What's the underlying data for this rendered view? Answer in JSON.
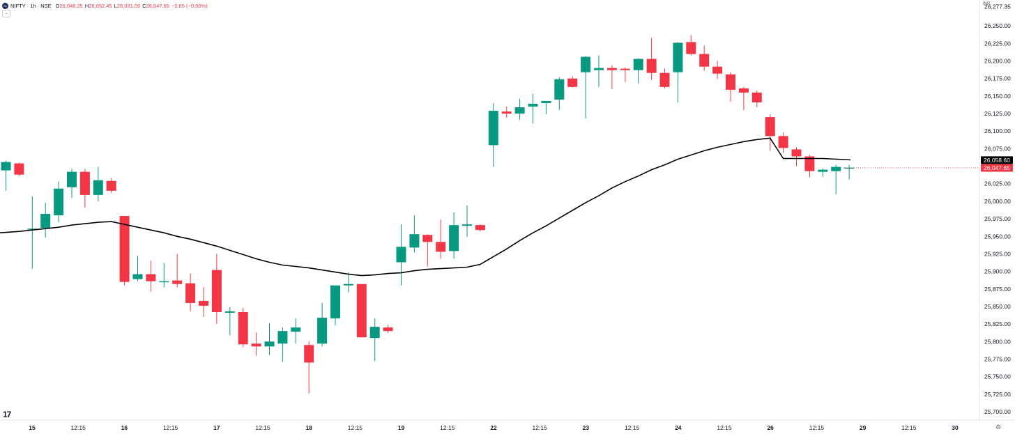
{
  "header": {
    "symbol": "NIFTY · 1h · NSE",
    "o_label": "O",
    "o_value": "26,048.25",
    "h_label": "H",
    "h_value": "26,052.45",
    "l_label": "L",
    "l_value": "26,031.05",
    "c_label": "C",
    "c_value": "26,047.65",
    "change": "−0.65 (−0.00%)"
  },
  "currency": "INR",
  "colors": {
    "up": "#089981",
    "down": "#f23645",
    "ma": "#000000",
    "grid": "#ffffff"
  },
  "icons": {
    "logo": "nifty-logo-icon",
    "collapse": "chevron-down-icon",
    "brand": "tradingview-logo-icon",
    "settings": "gear-icon"
  },
  "chart_data": {
    "type": "candlestick",
    "ylim": [
      25688,
      26287
    ],
    "y_ticks": [
      "26,277.35",
      "26,250.00",
      "26,225.00",
      "26,200.00",
      "26,175.00",
      "26,150.00",
      "26,125.00",
      "26,100.00",
      "26,075.00",
      "26,050.00",
      "26,025.00",
      "26,000.00",
      "25,975.00",
      "25,950.00",
      "25,925.00",
      "25,900.00",
      "25,875.00",
      "25,850.00",
      "25,825.00",
      "25,800.00",
      "25,775.00",
      "25,750.00",
      "25,725.00",
      "25,700.00"
    ],
    "x_ticks": [
      "15",
      "12:15",
      "16",
      "12:15",
      "17",
      "12:15",
      "18",
      "12:15",
      "19",
      "12:15",
      "22",
      "12:15",
      "23",
      "12:15",
      "24",
      "12:15",
      "26",
      "12:15",
      "29",
      "12:15",
      "30"
    ],
    "x_ticks_bold": [
      "15",
      "16",
      "17",
      "18",
      "19",
      "22",
      "23",
      "24",
      "26",
      "29",
      "30"
    ],
    "price_labels": {
      "ma_last": "26,058.60",
      "close_last": "26,047.65"
    },
    "candles": [
      {
        "o": 26044,
        "h": 26058,
        "l": 26015,
        "c": 26056
      },
      {
        "o": 26054,
        "h": 26055,
        "l": 26036,
        "c": 26038
      },
      {
        "o": 25960,
        "h": 26007,
        "l": 25904,
        "c": 25961
      },
      {
        "o": 25962,
        "h": 25998,
        "l": 25948,
        "c": 25982
      },
      {
        "o": 25980,
        "h": 26028,
        "l": 25970,
        "c": 26018
      },
      {
        "o": 26020,
        "h": 26046,
        "l": 26005,
        "c": 26042
      },
      {
        "o": 26042,
        "h": 26046,
        "l": 25991,
        "c": 26009
      },
      {
        "o": 26009,
        "h": 26049,
        "l": 26000,
        "c": 26030
      },
      {
        "o": 26029,
        "h": 26033,
        "l": 26012,
        "c": 26015
      },
      {
        "o": 25979,
        "h": 25979,
        "l": 25880,
        "c": 25885
      },
      {
        "o": 25889,
        "h": 25922,
        "l": 25886,
        "c": 25896
      },
      {
        "o": 25896,
        "h": 25915,
        "l": 25871,
        "c": 25886
      },
      {
        "o": 25886,
        "h": 25912,
        "l": 25877,
        "c": 25886
      },
      {
        "o": 25887,
        "h": 25925,
        "l": 25877,
        "c": 25882
      },
      {
        "o": 25883,
        "h": 25897,
        "l": 25843,
        "c": 25855
      },
      {
        "o": 25858,
        "h": 25878,
        "l": 25835,
        "c": 25851
      },
      {
        "o": 25902,
        "h": 25925,
        "l": 25825,
        "c": 25842
      },
      {
        "o": 25841,
        "h": 25849,
        "l": 25809,
        "c": 25843
      },
      {
        "o": 25842,
        "h": 25848,
        "l": 25792,
        "c": 25796
      },
      {
        "o": 25797,
        "h": 25813,
        "l": 25780,
        "c": 25793
      },
      {
        "o": 25793,
        "h": 25826,
        "l": 25781,
        "c": 25800
      },
      {
        "o": 25797,
        "h": 25820,
        "l": 25771,
        "c": 25815
      },
      {
        "o": 25814,
        "h": 25833,
        "l": 25797,
        "c": 25820
      },
      {
        "o": 25795,
        "h": 25800,
        "l": 25726,
        "c": 25770
      },
      {
        "o": 25797,
        "h": 25855,
        "l": 25793,
        "c": 25834
      },
      {
        "o": 25833,
        "h": 25880,
        "l": 25823,
        "c": 25880
      },
      {
        "o": 25880,
        "h": 25899,
        "l": 25870,
        "c": 25882
      },
      {
        "o": 25882,
        "h": 25882,
        "l": 25806,
        "c": 25806
      },
      {
        "o": 25805,
        "h": 25833,
        "l": 25772,
        "c": 25821
      },
      {
        "o": 25820,
        "h": 25824,
        "l": 25812,
        "c": 25815
      },
      {
        "o": 25913,
        "h": 25967,
        "l": 25880,
        "c": 25935
      },
      {
        "o": 25934,
        "h": 25980,
        "l": 25927,
        "c": 25953
      },
      {
        "o": 25952,
        "h": 25953,
        "l": 25907,
        "c": 25942
      },
      {
        "o": 25942,
        "h": 25974,
        "l": 25918,
        "c": 25928
      },
      {
        "o": 25929,
        "h": 25984,
        "l": 25918,
        "c": 25966
      },
      {
        "o": 25965,
        "h": 25994,
        "l": 25949,
        "c": 25967
      },
      {
        "o": 25966,
        "h": 25967,
        "l": 25957,
        "c": 25959
      },
      {
        "o": 26080,
        "h": 26140,
        "l": 26049,
        "c": 26129
      },
      {
        "o": 26128,
        "h": 26135,
        "l": 26119,
        "c": 26125
      },
      {
        "o": 26125,
        "h": 26146,
        "l": 26116,
        "c": 26134
      },
      {
        "o": 26135,
        "h": 26153,
        "l": 26111,
        "c": 26139
      },
      {
        "o": 26140,
        "h": 26141,
        "l": 26124,
        "c": 26143
      },
      {
        "o": 26145,
        "h": 26177,
        "l": 26130,
        "c": 26174
      },
      {
        "o": 26175,
        "h": 26178,
        "l": 26162,
        "c": 26163
      },
      {
        "o": 26184,
        "h": 26207,
        "l": 26118,
        "c": 26206
      },
      {
        "o": 26187,
        "h": 26208,
        "l": 26163,
        "c": 26190
      },
      {
        "o": 26190,
        "h": 26194,
        "l": 26160,
        "c": 26187
      },
      {
        "o": 26189,
        "h": 26191,
        "l": 26170,
        "c": 26187
      },
      {
        "o": 26187,
        "h": 26204,
        "l": 26168,
        "c": 26203
      },
      {
        "o": 26203,
        "h": 26233,
        "l": 26173,
        "c": 26183
      },
      {
        "o": 26183,
        "h": 26189,
        "l": 26161,
        "c": 26163
      },
      {
        "o": 26184,
        "h": 26227,
        "l": 26141,
        "c": 26226
      },
      {
        "o": 26227,
        "h": 26237,
        "l": 26208,
        "c": 26210
      },
      {
        "o": 26210,
        "h": 26222,
        "l": 26186,
        "c": 26192
      },
      {
        "o": 26192,
        "h": 26200,
        "l": 26174,
        "c": 26182
      },
      {
        "o": 26181,
        "h": 26184,
        "l": 26142,
        "c": 26159
      },
      {
        "o": 26161,
        "h": 26163,
        "l": 26130,
        "c": 26155
      },
      {
        "o": 26155,
        "h": 26158,
        "l": 26134,
        "c": 26141
      },
      {
        "o": 26120,
        "h": 26124,
        "l": 26072,
        "c": 26093
      },
      {
        "o": 26093,
        "h": 26098,
        "l": 26069,
        "c": 26076
      },
      {
        "o": 26074,
        "h": 26077,
        "l": 26050,
        "c": 26064
      },
      {
        "o": 26064,
        "h": 26066,
        "l": 26034,
        "c": 26043
      },
      {
        "o": 26042,
        "h": 26047,
        "l": 26035,
        "c": 26045
      },
      {
        "o": 26043,
        "h": 26052,
        "l": 26010,
        "c": 26049
      },
      {
        "o": 26048,
        "h": 26052,
        "l": 26031,
        "c": 26048
      }
    ],
    "ma": [
      25955,
      25957,
      25959,
      25961,
      25963,
      25966,
      25968,
      25970,
      25971,
      25967,
      25963,
      25959,
      25955,
      25950,
      25946,
      25941,
      25936,
      25930,
      25924,
      25918,
      25913,
      25909,
      25907,
      25905,
      25902,
      25899,
      25896,
      25894,
      25895,
      25897,
      25898,
      25901,
      25903,
      25904,
      25905,
      25906,
      25910,
      25921,
      25932,
      25944,
      25955,
      25965,
      25976,
      25987,
      25998,
      26008,
      26019,
      26028,
      26036,
      26045,
      26052,
      26060,
      26066,
      26072,
      26077,
      26081,
      26085,
      26088,
      26090,
      26061,
      26061,
      26061,
      26061,
      26060,
      26059
    ]
  }
}
